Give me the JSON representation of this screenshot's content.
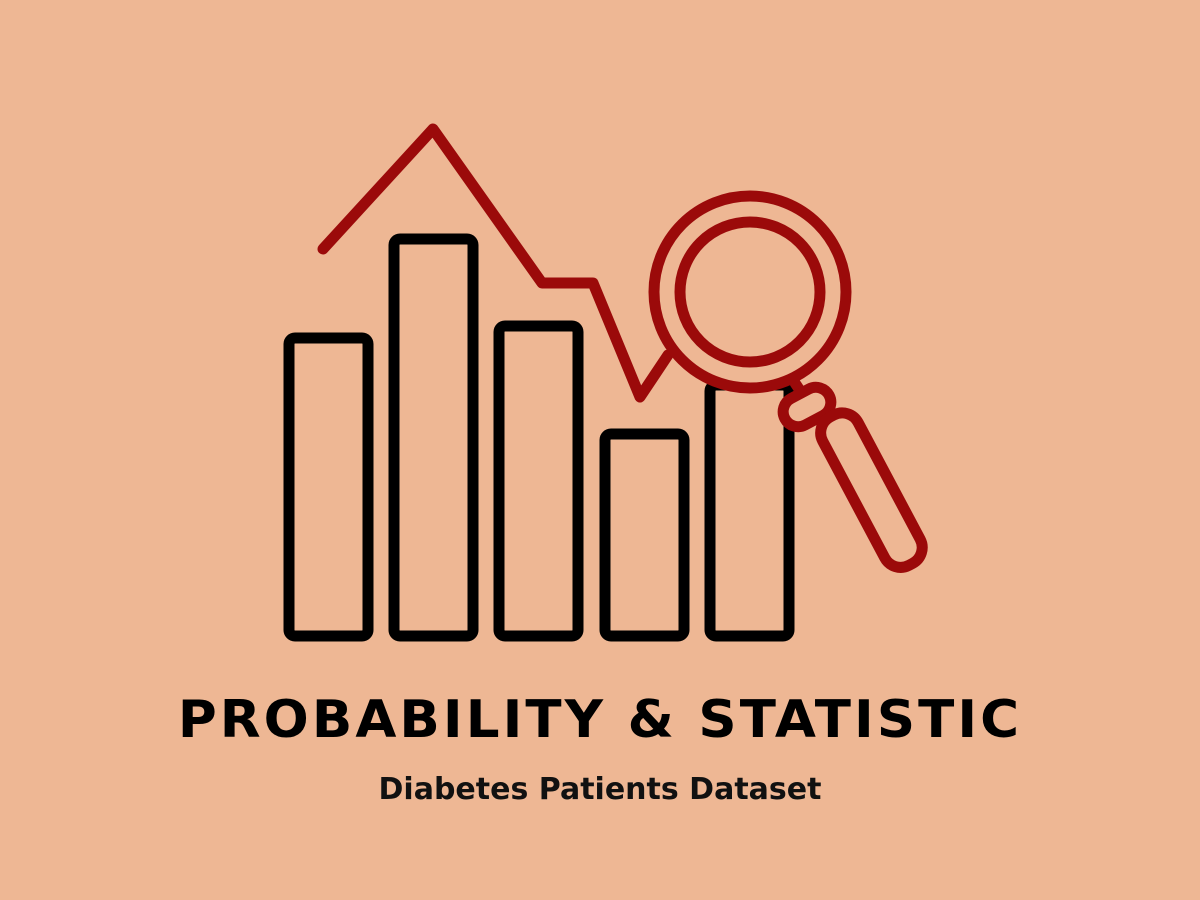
{
  "title": "PROBABILITY & STATISTIC",
  "subtitle": "Diabetes Patients Dataset",
  "colors": {
    "background": "#EEB794",
    "bars": "#000000",
    "accent": "#9B0A0A"
  },
  "illustration": {
    "icon": "bar-chart-magnifier-icon",
    "bar_levels": [
      0.6,
      0.77,
      0.62,
      0.39,
      0.47
    ]
  }
}
